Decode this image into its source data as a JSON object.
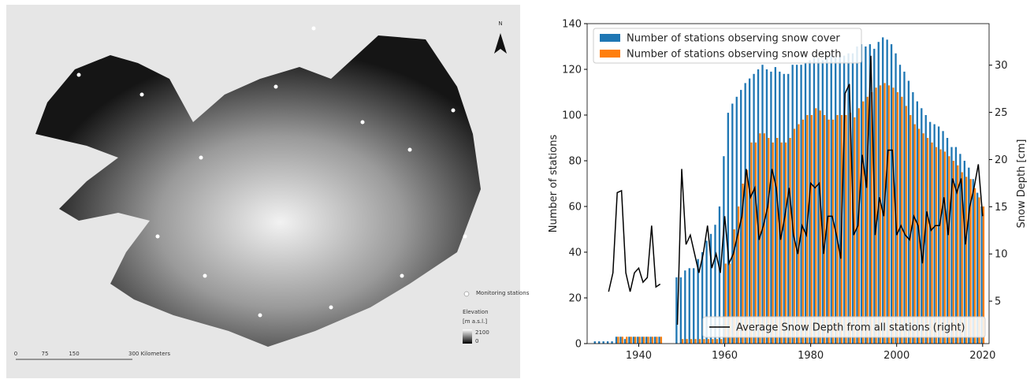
{
  "map": {
    "north": "N",
    "legend_stations": "Monitoring stations",
    "legend_elevation": "Elevation",
    "legend_unit": "[m a.s.l.]",
    "legend_high": "2100",
    "legend_low": "0",
    "scale_labels": [
      "0",
      "75",
      "150",
      "300 Kilometers"
    ]
  },
  "chart_data": {
    "type": "bar-line",
    "x": [
      1930,
      1931,
      1932,
      1933,
      1934,
      1935,
      1936,
      1937,
      1938,
      1939,
      1940,
      1941,
      1942,
      1943,
      1944,
      1945,
      1946,
      1947,
      1948,
      1949,
      1950,
      1951,
      1952,
      1953,
      1954,
      1955,
      1956,
      1957,
      1958,
      1959,
      1960,
      1961,
      1962,
      1963,
      1964,
      1965,
      1966,
      1967,
      1968,
      1969,
      1970,
      1971,
      1972,
      1973,
      1974,
      1975,
      1976,
      1977,
      1978,
      1979,
      1980,
      1981,
      1982,
      1983,
      1984,
      1985,
      1986,
      1987,
      1988,
      1989,
      1990,
      1991,
      1992,
      1993,
      1994,
      1995,
      1996,
      1997,
      1998,
      1999,
      2000,
      2001,
      2002,
      2003,
      2004,
      2005,
      2006,
      2007,
      2008,
      2009,
      2010,
      2011,
      2012,
      2013,
      2014,
      2015,
      2016,
      2017,
      2018,
      2019,
      2020
    ],
    "series": [
      {
        "name": "Number of stations observing snow cover",
        "kind": "bar",
        "color": "#1f77b4",
        "values": [
          1,
          1,
          1,
          1,
          1,
          3,
          3,
          2,
          3,
          3,
          3,
          3,
          3,
          3,
          3,
          3,
          0,
          0,
          0,
          29,
          29,
          32,
          33,
          33,
          37,
          40,
          45,
          48,
          52,
          60,
          82,
          101,
          105,
          108,
          111,
          114,
          116,
          118,
          120,
          122,
          120,
          119,
          121,
          119,
          118,
          118,
          122,
          122,
          122,
          123,
          124,
          125,
          125,
          124,
          125,
          126,
          125,
          126,
          126,
          127,
          127,
          130,
          131,
          130,
          131,
          129,
          132,
          134,
          133,
          131,
          127,
          122,
          119,
          115,
          110,
          106,
          103,
          100,
          97,
          96,
          95,
          93,
          90,
          86,
          86,
          83,
          80,
          77,
          72,
          66,
          60
        ]
      },
      {
        "name": "Number of stations observing snow depth",
        "kind": "bar",
        "color": "#ff7f0e",
        "values": [
          0,
          0,
          0,
          0,
          0,
          3,
          3,
          3,
          3,
          3,
          3,
          3,
          3,
          3,
          3,
          3,
          0,
          0,
          0,
          0,
          2,
          2,
          2,
          2,
          2,
          2,
          2,
          2,
          2,
          2,
          35,
          35,
          50,
          60,
          70,
          76,
          88,
          88,
          92,
          92,
          90,
          88,
          90,
          88,
          88,
          90,
          94,
          96,
          98,
          100,
          100,
          103,
          102,
          100,
          98,
          98,
          100,
          100,
          100,
          101,
          99,
          103,
          106,
          108,
          110,
          112,
          113,
          114,
          113,
          112,
          110,
          108,
          104,
          100,
          96,
          94,
          92,
          90,
          88,
          86,
          85,
          84,
          82,
          80,
          78,
          75,
          73,
          72,
          68,
          64,
          60
        ]
      },
      {
        "name": "Average Snow Depth from all stations (right)",
        "kind": "line",
        "axis": "y2",
        "color": "#000000",
        "values": [
          null,
          null,
          null,
          6,
          8,
          16.5,
          16.7,
          8,
          6,
          8,
          8.5,
          7,
          7.5,
          13,
          6.5,
          6.8,
          null,
          null,
          null,
          2.5,
          19,
          11,
          12,
          10,
          8,
          10,
          13,
          8.5,
          10,
          8,
          14,
          9,
          10,
          12,
          14,
          19,
          16,
          17,
          11.5,
          13,
          15,
          19,
          17,
          11.5,
          14,
          17,
          12,
          10,
          13,
          12,
          17.5,
          17,
          17.5,
          10,
          14,
          14,
          12,
          9.5,
          27,
          28,
          12,
          13,
          20.5,
          17,
          31,
          12,
          16,
          14,
          21,
          21,
          12,
          13,
          12,
          11.5,
          14,
          13,
          9,
          14.5,
          12.5,
          13,
          13,
          16,
          12,
          18,
          16.5,
          18,
          11,
          15,
          17,
          19.5,
          14
        ]
      }
    ],
    "ylabel": "Number of stations",
    "y2label": "Snow Depth [cm]",
    "xlim": [
      1928,
      2021.5
    ],
    "xticks": [
      1940,
      1960,
      1980,
      2000,
      2020
    ],
    "ylim": [
      0,
      140
    ],
    "yticks": [
      0,
      20,
      40,
      60,
      80,
      100,
      120,
      140
    ],
    "y2lim": [
      0.5,
      34.4
    ],
    "y2ticks": [
      5,
      10,
      15,
      20,
      25,
      30
    ]
  }
}
